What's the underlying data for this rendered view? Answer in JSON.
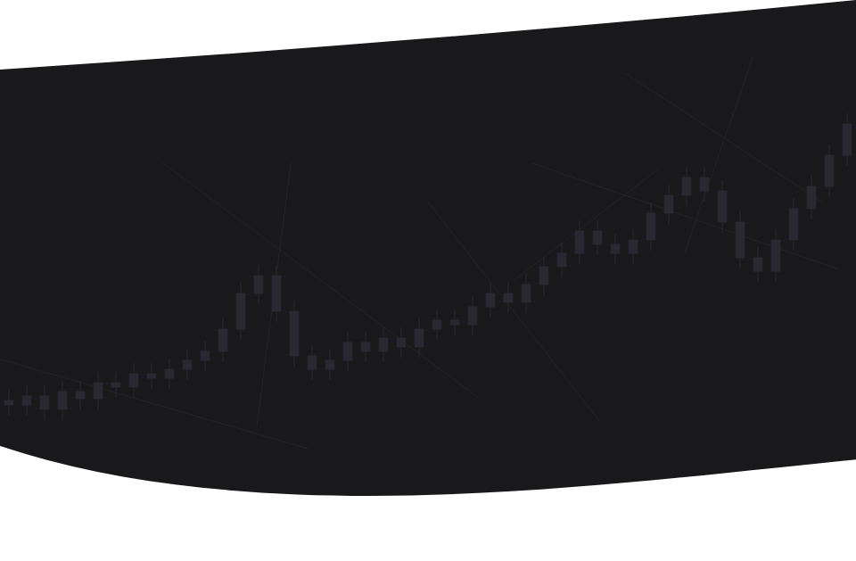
{
  "chart_data": {
    "type": "candlestick",
    "x": [
      0,
      1,
      2,
      3,
      4,
      5,
      6,
      7,
      8,
      9,
      10,
      11,
      12,
      13,
      14,
      15,
      16,
      17,
      18,
      19,
      20,
      21,
      22,
      23,
      24,
      25,
      26,
      27,
      28,
      29,
      30,
      31,
      32,
      33,
      34,
      35,
      36,
      37,
      38,
      39,
      40,
      41,
      42,
      43,
      44,
      45,
      46,
      47
    ],
    "open": [
      180,
      175,
      185,
      170,
      190,
      182,
      200,
      195,
      210,
      205,
      215,
      225,
      235,
      260,
      300,
      320,
      280,
      230,
      215,
      225,
      245,
      235,
      250,
      240,
      260,
      270,
      265,
      285,
      300,
      290,
      310,
      330,
      345,
      370,
      355,
      345,
      360,
      390,
      410,
      430,
      415,
      380,
      340,
      325,
      360,
      395,
      420,
      455
    ],
    "high": [
      192,
      197,
      197,
      202,
      202,
      212,
      212,
      222,
      222,
      227,
      237,
      247,
      272,
      312,
      332,
      332,
      292,
      242,
      237,
      257,
      257,
      262,
      262,
      272,
      282,
      282,
      297,
      312,
      312,
      322,
      342,
      357,
      382,
      382,
      367,
      372,
      402,
      422,
      442,
      442,
      427,
      392,
      352,
      372,
      407,
      432,
      467,
      502
    ],
    "low": [
      163,
      163,
      158,
      158,
      170,
      170,
      183,
      183,
      193,
      193,
      203,
      213,
      223,
      248,
      288,
      268,
      218,
      203,
      203,
      213,
      223,
      223,
      228,
      228,
      248,
      253,
      253,
      273,
      278,
      278,
      298,
      318,
      333,
      343,
      333,
      333,
      348,
      378,
      398,
      403,
      368,
      328,
      313,
      313,
      348,
      383,
      408,
      443
    ],
    "close": [
      175,
      185,
      170,
      190,
      182,
      200,
      195,
      210,
      205,
      215,
      225,
      235,
      260,
      300,
      320,
      280,
      230,
      215,
      225,
      245,
      235,
      250,
      240,
      260,
      270,
      265,
      285,
      300,
      290,
      310,
      330,
      345,
      370,
      355,
      345,
      360,
      390,
      410,
      430,
      415,
      380,
      340,
      325,
      360,
      395,
      420,
      455,
      490
    ],
    "xlim": [
      -0.5,
      47.5
    ],
    "ylim": [
      0,
      629
    ],
    "color": "#2b2833",
    "grid": false,
    "tick_labels": false
  }
}
